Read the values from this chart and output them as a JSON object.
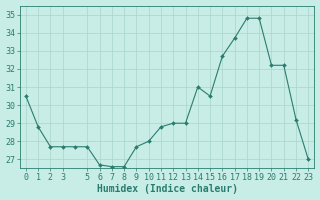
{
  "x": [
    0,
    1,
    2,
    3,
    4,
    5,
    6,
    7,
    8,
    9,
    10,
    11,
    12,
    13,
    14,
    15,
    16,
    17,
    18,
    19,
    20,
    21,
    22,
    23
  ],
  "y": [
    30.5,
    28.8,
    27.7,
    27.7,
    27.7,
    27.7,
    26.7,
    26.6,
    26.6,
    27.7,
    28.0,
    28.8,
    29.0,
    29.0,
    31.0,
    30.5,
    32.7,
    33.7,
    34.8,
    34.8,
    32.2,
    32.2,
    29.2,
    27.0
  ],
  "line_color": "#2a7d6e",
  "marker": "D",
  "marker_size": 2.0,
  "bg_color": "#c8ece6",
  "grid_color": "#a8d4cc",
  "axis_color": "#2a7d6e",
  "tick_color": "#2a7d6e",
  "xlabel": "Humidex (Indice chaleur)",
  "xlim": [
    -0.5,
    23.5
  ],
  "ylim": [
    26.5,
    35.5
  ],
  "yticks": [
    27,
    28,
    29,
    30,
    31,
    32,
    33,
    34,
    35
  ],
  "xticks": [
    0,
    1,
    2,
    3,
    5,
    6,
    7,
    8,
    9,
    10,
    11,
    12,
    13,
    14,
    15,
    16,
    17,
    18,
    19,
    20,
    21,
    22,
    23
  ],
  "font_size": 6.0,
  "label_font_size": 7.0
}
